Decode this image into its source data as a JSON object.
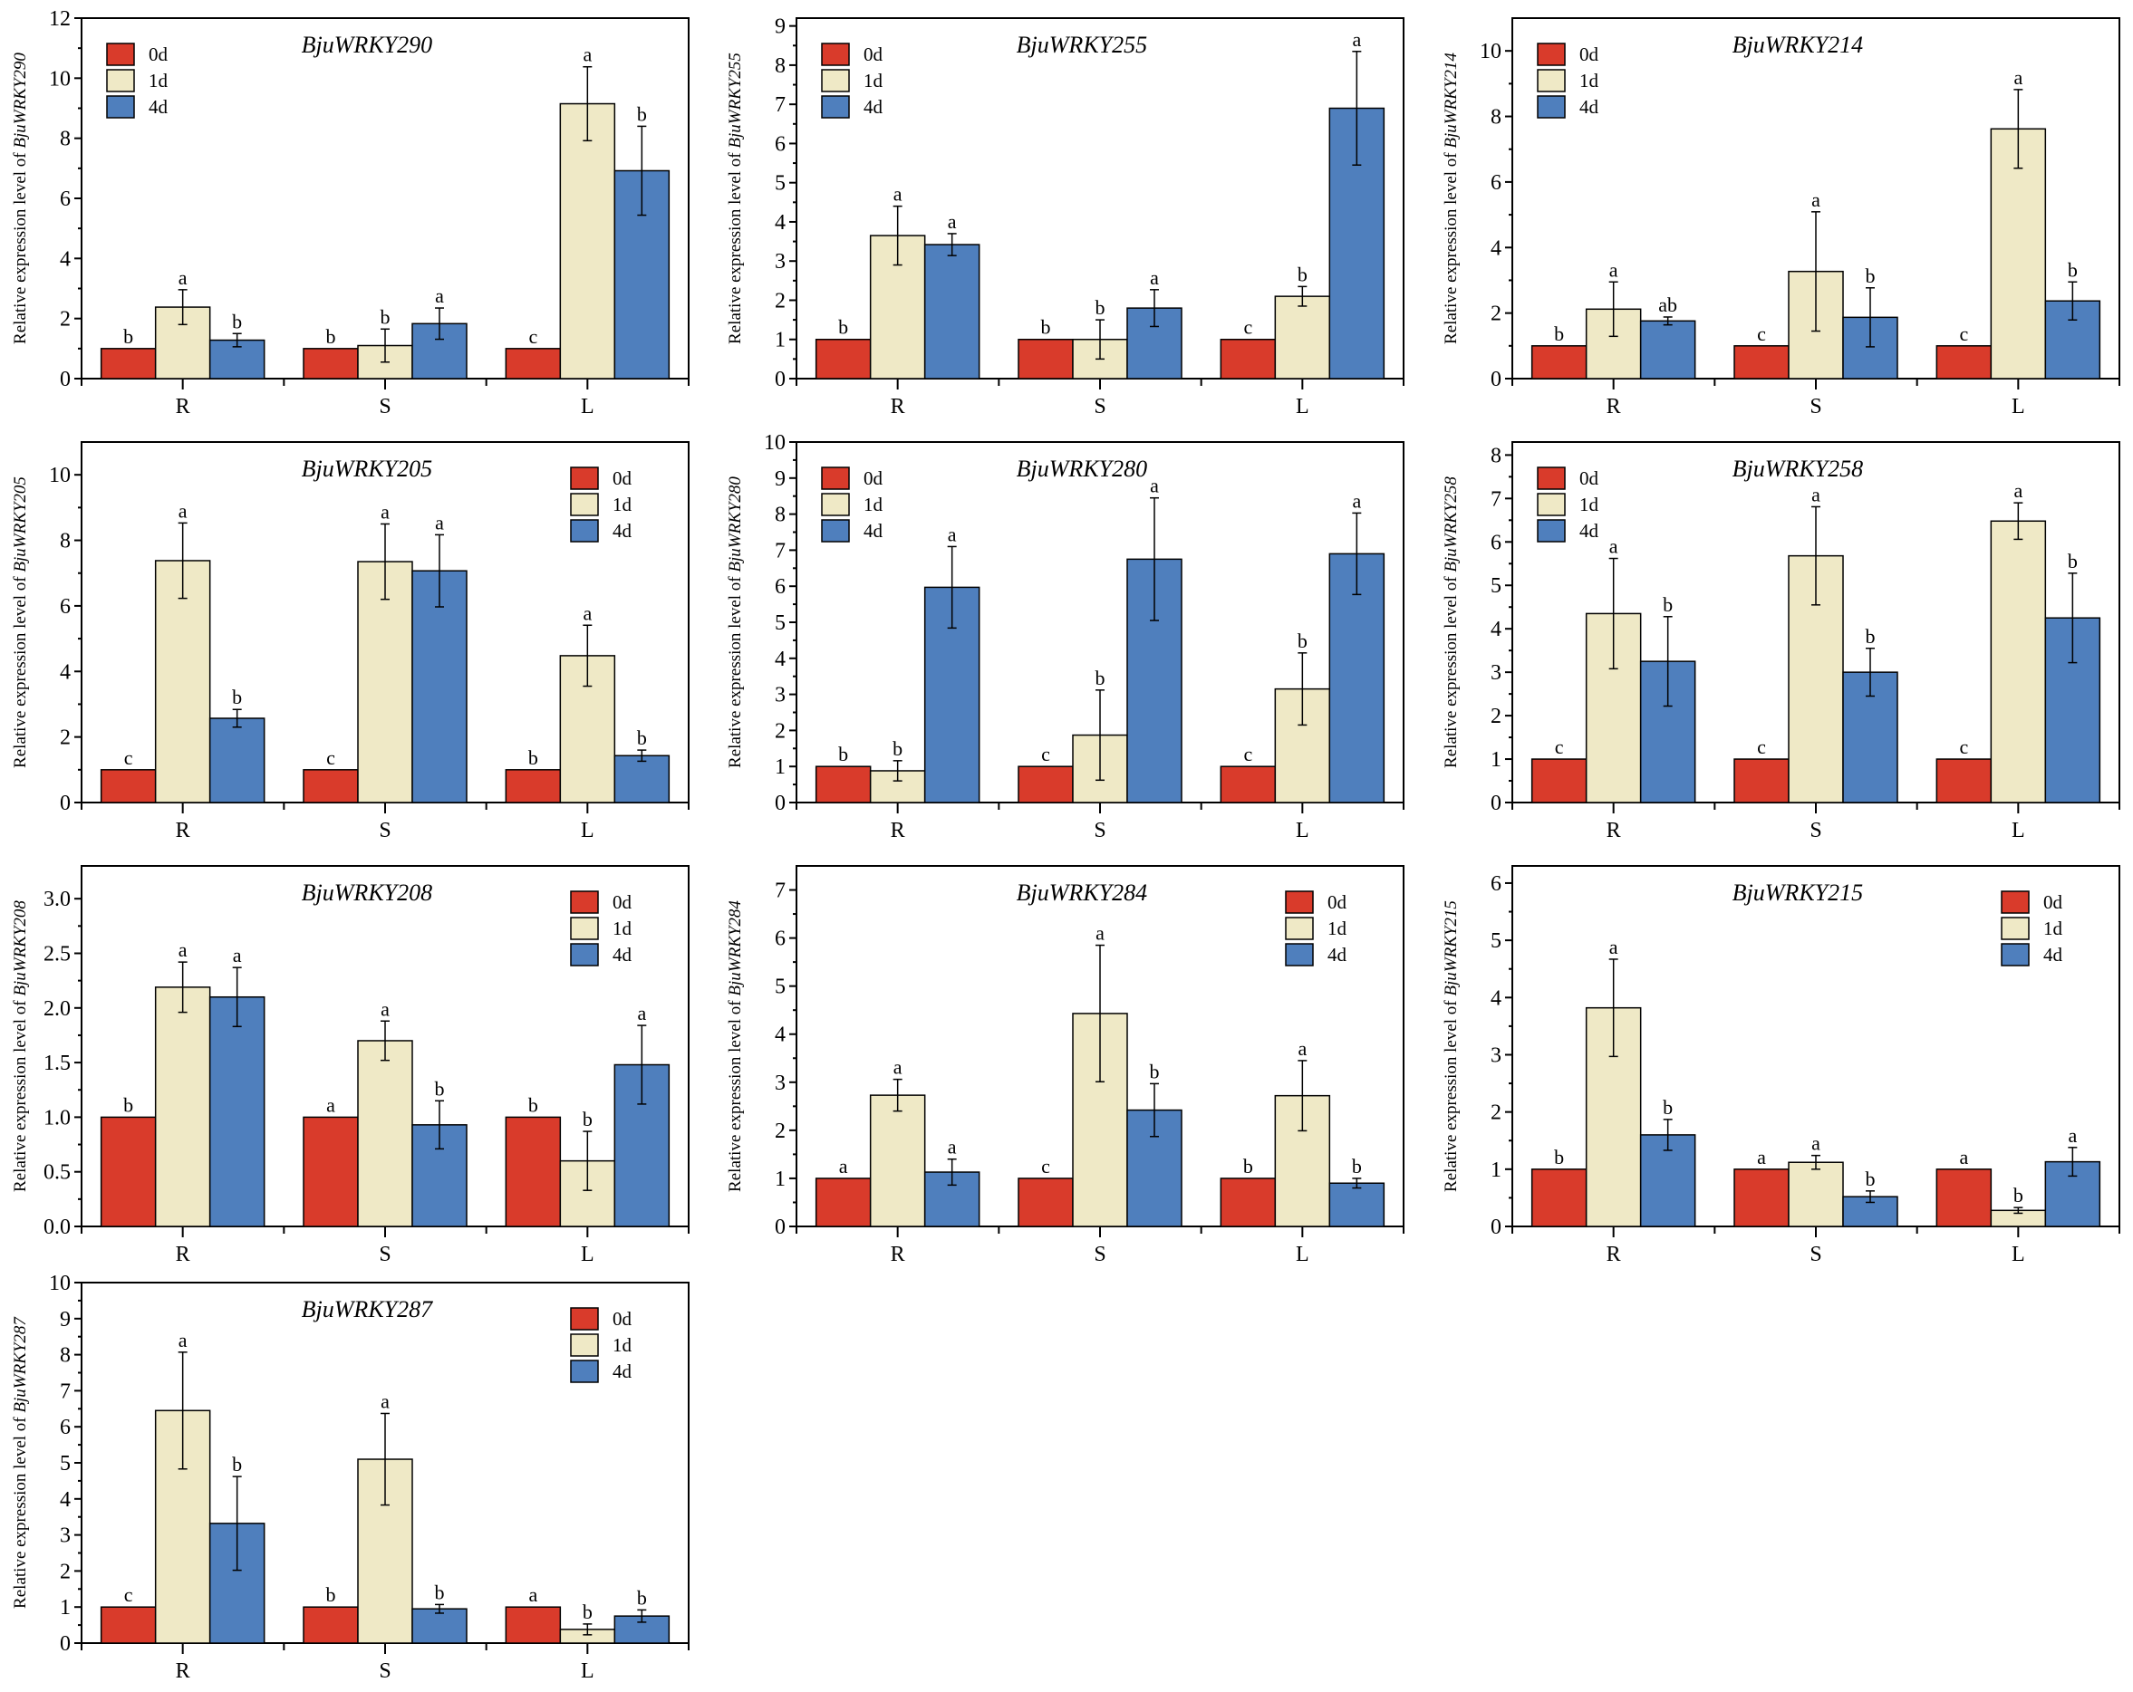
{
  "chart_data": [
    {
      "type": "bar",
      "title": "BjuWRKY290",
      "ylabel_prefix": "Relative expression level of ",
      "ylabel_gene": "BjuWRKY290",
      "ylim": [
        0,
        12
      ],
      "yticks": [
        0,
        2,
        4,
        6,
        8,
        10,
        12
      ],
      "legend": "top-left",
      "categories": [
        "R",
        "S",
        "L"
      ],
      "series": [
        {
          "name": "0d",
          "values": [
            1,
            1,
            1
          ],
          "errors": [
            0,
            0,
            0
          ],
          "letters": [
            "b",
            "b",
            "c"
          ]
        },
        {
          "name": "1d",
          "values": [
            2.38,
            1.1,
            9.15
          ],
          "errors": [
            0.58,
            0.55,
            1.23
          ],
          "letters": [
            "a",
            "b",
            "a"
          ]
        },
        {
          "name": "4d",
          "values": [
            1.28,
            1.83,
            6.92
          ],
          "errors": [
            0.22,
            0.52,
            1.48
          ],
          "letters": [
            "b",
            "a",
            "b"
          ]
        }
      ]
    },
    {
      "type": "bar",
      "title": "BjuWRKY255",
      "ylabel_prefix": "Relative expression level of ",
      "ylabel_gene": "BjuWRKY255",
      "ylim": [
        0,
        9.2
      ],
      "yticks": [
        0,
        1,
        2,
        3,
        4,
        5,
        6,
        7,
        8,
        9
      ],
      "legend": "top-left",
      "categories": [
        "R",
        "S",
        "L"
      ],
      "series": [
        {
          "name": "0d",
          "values": [
            1,
            1,
            1
          ],
          "errors": [
            0,
            0,
            0
          ],
          "letters": [
            "b",
            "b",
            "c"
          ]
        },
        {
          "name": "1d",
          "values": [
            3.65,
            1.0,
            2.1
          ],
          "errors": [
            0.75,
            0.5,
            0.25
          ],
          "letters": [
            "a",
            "b",
            "b"
          ]
        },
        {
          "name": "4d",
          "values": [
            3.42,
            1.8,
            6.9
          ],
          "errors": [
            0.28,
            0.47,
            1.45
          ],
          "letters": [
            "a",
            "a",
            "a"
          ]
        }
      ]
    },
    {
      "type": "bar",
      "title": "BjuWRKY214",
      "ylabel_prefix": "Relative expression level of ",
      "ylabel_gene": "BjuWRKY214",
      "ylim": [
        0,
        11
      ],
      "yticks": [
        0,
        2,
        4,
        6,
        8,
        10
      ],
      "legend": "top-left",
      "categories": [
        "R",
        "S",
        "L"
      ],
      "series": [
        {
          "name": "0d",
          "values": [
            1,
            1,
            1
          ],
          "errors": [
            0,
            0,
            0
          ],
          "letters": [
            "b",
            "c",
            "c"
          ]
        },
        {
          "name": "1d",
          "values": [
            2.12,
            3.27,
            7.62
          ],
          "errors": [
            0.83,
            1.82,
            1.2
          ],
          "letters": [
            "a",
            "a",
            "a"
          ]
        },
        {
          "name": "4d",
          "values": [
            1.76,
            1.87,
            2.37
          ],
          "errors": [
            0.12,
            0.9,
            0.58
          ],
          "letters": [
            "ab",
            "b",
            "b"
          ]
        }
      ]
    },
    {
      "type": "bar",
      "title": "BjuWRKY205",
      "ylabel_prefix": "Relative expression level of ",
      "ylabel_gene": "BjuWRKY205",
      "ylim": [
        0,
        11
      ],
      "yticks": [
        0,
        2,
        4,
        6,
        8,
        10
      ],
      "legend": "top-right",
      "categories": [
        "R",
        "S",
        "L"
      ],
      "series": [
        {
          "name": "0d",
          "values": [
            1,
            1,
            1
          ],
          "errors": [
            0,
            0,
            0
          ],
          "letters": [
            "c",
            "c",
            "b"
          ]
        },
        {
          "name": "1d",
          "values": [
            7.38,
            7.35,
            4.48
          ],
          "errors": [
            1.15,
            1.15,
            0.93
          ],
          "letters": [
            "a",
            "a",
            "a"
          ]
        },
        {
          "name": "4d",
          "values": [
            2.57,
            7.07,
            1.43
          ],
          "errors": [
            0.27,
            1.1,
            0.17
          ],
          "letters": [
            "b",
            "a",
            "b"
          ]
        }
      ]
    },
    {
      "type": "bar",
      "title": "BjuWRKY280",
      "ylabel_prefix": "Relative expression level of ",
      "ylabel_gene": "BjuWRKY280",
      "ylim": [
        0,
        10
      ],
      "yticks": [
        0,
        1,
        2,
        3,
        4,
        5,
        6,
        7,
        8,
        9,
        10
      ],
      "legend": "top-left",
      "categories": [
        "R",
        "S",
        "L"
      ],
      "series": [
        {
          "name": "0d",
          "values": [
            1,
            1,
            1
          ],
          "errors": [
            0,
            0,
            0
          ],
          "letters": [
            "b",
            "c",
            "c"
          ]
        },
        {
          "name": "1d",
          "values": [
            0.88,
            1.87,
            3.15
          ],
          "errors": [
            0.28,
            1.25,
            1.0
          ],
          "letters": [
            "b",
            "b",
            "b"
          ]
        },
        {
          "name": "4d",
          "values": [
            5.97,
            6.75,
            6.9
          ],
          "errors": [
            1.13,
            1.7,
            1.13
          ],
          "letters": [
            "a",
            "a",
            "a"
          ]
        }
      ]
    },
    {
      "type": "bar",
      "title": "BjuWRKY258",
      "ylabel_prefix": "Relative expression level of ",
      "ylabel_gene": "BjuWRKY258",
      "ylim": [
        0,
        8.3
      ],
      "yticks": [
        0,
        1,
        2,
        3,
        4,
        5,
        6,
        7,
        8
      ],
      "legend": "top-left",
      "categories": [
        "R",
        "S",
        "L"
      ],
      "series": [
        {
          "name": "0d",
          "values": [
            1,
            1,
            1
          ],
          "errors": [
            0,
            0,
            0
          ],
          "letters": [
            "c",
            "c",
            "c"
          ]
        },
        {
          "name": "1d",
          "values": [
            4.35,
            5.68,
            6.48
          ],
          "errors": [
            1.27,
            1.13,
            0.42
          ],
          "letters": [
            "a",
            "a",
            "a"
          ]
        },
        {
          "name": "4d",
          "values": [
            3.25,
            3.0,
            4.25
          ],
          "errors": [
            1.03,
            0.55,
            1.03
          ],
          "letters": [
            "b",
            "b",
            "b"
          ]
        }
      ]
    },
    {
      "type": "bar",
      "title": "BjuWRKY208",
      "ylabel_prefix": "Relative expression level of ",
      "ylabel_gene": "BjuWRKY208",
      "ylim": [
        0,
        3.3
      ],
      "yticks": [
        0,
        0.5,
        1.0,
        1.5,
        2.0,
        2.5,
        3.0
      ],
      "ytick_decimals": 1,
      "legend": "top-right",
      "categories": [
        "R",
        "S",
        "L"
      ],
      "series": [
        {
          "name": "0d",
          "values": [
            1,
            1,
            1
          ],
          "errors": [
            0,
            0,
            0
          ],
          "letters": [
            "b",
            "a",
            "b"
          ]
        },
        {
          "name": "1d",
          "values": [
            2.19,
            1.7,
            0.6
          ],
          "errors": [
            0.23,
            0.18,
            0.27
          ],
          "letters": [
            "a",
            "a",
            "b"
          ]
        },
        {
          "name": "4d",
          "values": [
            2.1,
            0.93,
            1.48
          ],
          "errors": [
            0.27,
            0.22,
            0.36
          ],
          "letters": [
            "a",
            "b",
            "a"
          ]
        }
      ]
    },
    {
      "type": "bar",
      "title": "BjuWRKY284",
      "ylabel_prefix": "Relative expression level of ",
      "ylabel_gene": "BjuWRKY284",
      "ylim": [
        0,
        7.5
      ],
      "yticks": [
        0,
        1,
        2,
        3,
        4,
        5,
        6,
        7
      ],
      "legend": "top-right",
      "categories": [
        "R",
        "S",
        "L"
      ],
      "series": [
        {
          "name": "0d",
          "values": [
            1,
            1,
            1
          ],
          "errors": [
            0,
            0,
            0
          ],
          "letters": [
            "a",
            "c",
            "b"
          ]
        },
        {
          "name": "1d",
          "values": [
            2.73,
            4.43,
            2.72
          ],
          "errors": [
            0.33,
            1.42,
            0.73
          ],
          "letters": [
            "a",
            "a",
            "a"
          ]
        },
        {
          "name": "4d",
          "values": [
            1.13,
            2.42,
            0.9
          ],
          "errors": [
            0.27,
            0.55,
            0.1
          ],
          "letters": [
            "a",
            "b",
            "b"
          ]
        }
      ]
    },
    {
      "type": "bar",
      "title": "BjuWRKY215",
      "ylabel_prefix": "Relative expression level of ",
      "ylabel_gene": "BjuWRKY215",
      "ylim": [
        0,
        6.3
      ],
      "yticks": [
        0,
        1,
        2,
        3,
        4,
        5,
        6
      ],
      "legend": "top-right",
      "categories": [
        "R",
        "S",
        "L"
      ],
      "series": [
        {
          "name": "0d",
          "values": [
            1,
            1,
            1
          ],
          "errors": [
            0,
            0,
            0
          ],
          "letters": [
            "b",
            "a",
            "a"
          ]
        },
        {
          "name": "1d",
          "values": [
            3.82,
            1.12,
            0.28
          ],
          "errors": [
            0.85,
            0.12,
            0.05
          ],
          "letters": [
            "a",
            "a",
            "b"
          ]
        },
        {
          "name": "4d",
          "values": [
            1.6,
            0.52,
            1.13
          ],
          "errors": [
            0.27,
            0.1,
            0.25
          ],
          "letters": [
            "b",
            "b",
            "a"
          ]
        }
      ]
    },
    {
      "type": "bar",
      "title": "BjuWRKY287",
      "ylabel_prefix": "Relative expression level of ",
      "ylabel_gene": "BjuWRKY287",
      "ylim": [
        0,
        10
      ],
      "yticks": [
        0,
        1,
        2,
        3,
        4,
        5,
        6,
        7,
        8,
        9,
        10
      ],
      "legend": "top-right",
      "categories": [
        "R",
        "S",
        "L"
      ],
      "series": [
        {
          "name": "0d",
          "values": [
            1,
            1,
            1
          ],
          "errors": [
            0,
            0,
            0
          ],
          "letters": [
            "c",
            "b",
            "a"
          ]
        },
        {
          "name": "1d",
          "values": [
            6.45,
            5.1,
            0.38
          ],
          "errors": [
            1.62,
            1.27,
            0.15
          ],
          "letters": [
            "a",
            "a",
            "b"
          ]
        },
        {
          "name": "4d",
          "values": [
            3.32,
            0.95,
            0.75
          ],
          "errors": [
            1.3,
            0.12,
            0.17
          ],
          "letters": [
            "b",
            "b",
            "b"
          ]
        }
      ]
    }
  ],
  "colors": {
    "0d": "#d93b2b",
    "1d": "#efe9c6",
    "4d": "#4f7fbd"
  }
}
